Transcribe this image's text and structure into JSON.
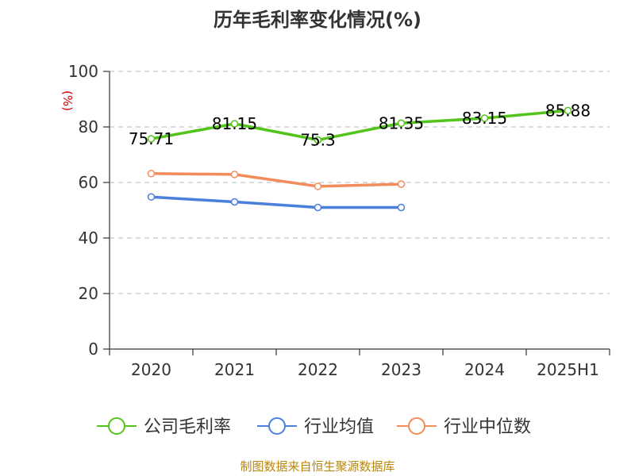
{
  "chart_data": {
    "type": "line",
    "title": "历年毛利率变化情况(%)",
    "ylabel": "(%)",
    "xlabel": "",
    "categories": [
      "2020",
      "2021",
      "2022",
      "2023",
      "2024",
      "2025H1"
    ],
    "ylim": [
      0,
      100
    ],
    "yticks": [
      0,
      20,
      40,
      60,
      80,
      100
    ],
    "grid": "horizontal dashed",
    "legend_position": "bottom",
    "series": [
      {
        "name": "公司毛利率",
        "color": "#52c41a",
        "values": [
          75.71,
          81.15,
          75.3,
          81.35,
          83.15,
          85.88
        ],
        "labels": [
          "75.71",
          "81.15",
          "75.3",
          "81.35",
          "83.15",
          "85.88"
        ]
      },
      {
        "name": "行业均值",
        "color": "#4a7fdc",
        "values": [
          54.8,
          53.0,
          51.0,
          51.0,
          null,
          null
        ]
      },
      {
        "name": "行业中位数",
        "color": "#f28c5a",
        "values": [
          63.2,
          62.9,
          58.6,
          59.4,
          null,
          null
        ]
      }
    ],
    "source": "制图数据来自恒生聚源数据库"
  }
}
